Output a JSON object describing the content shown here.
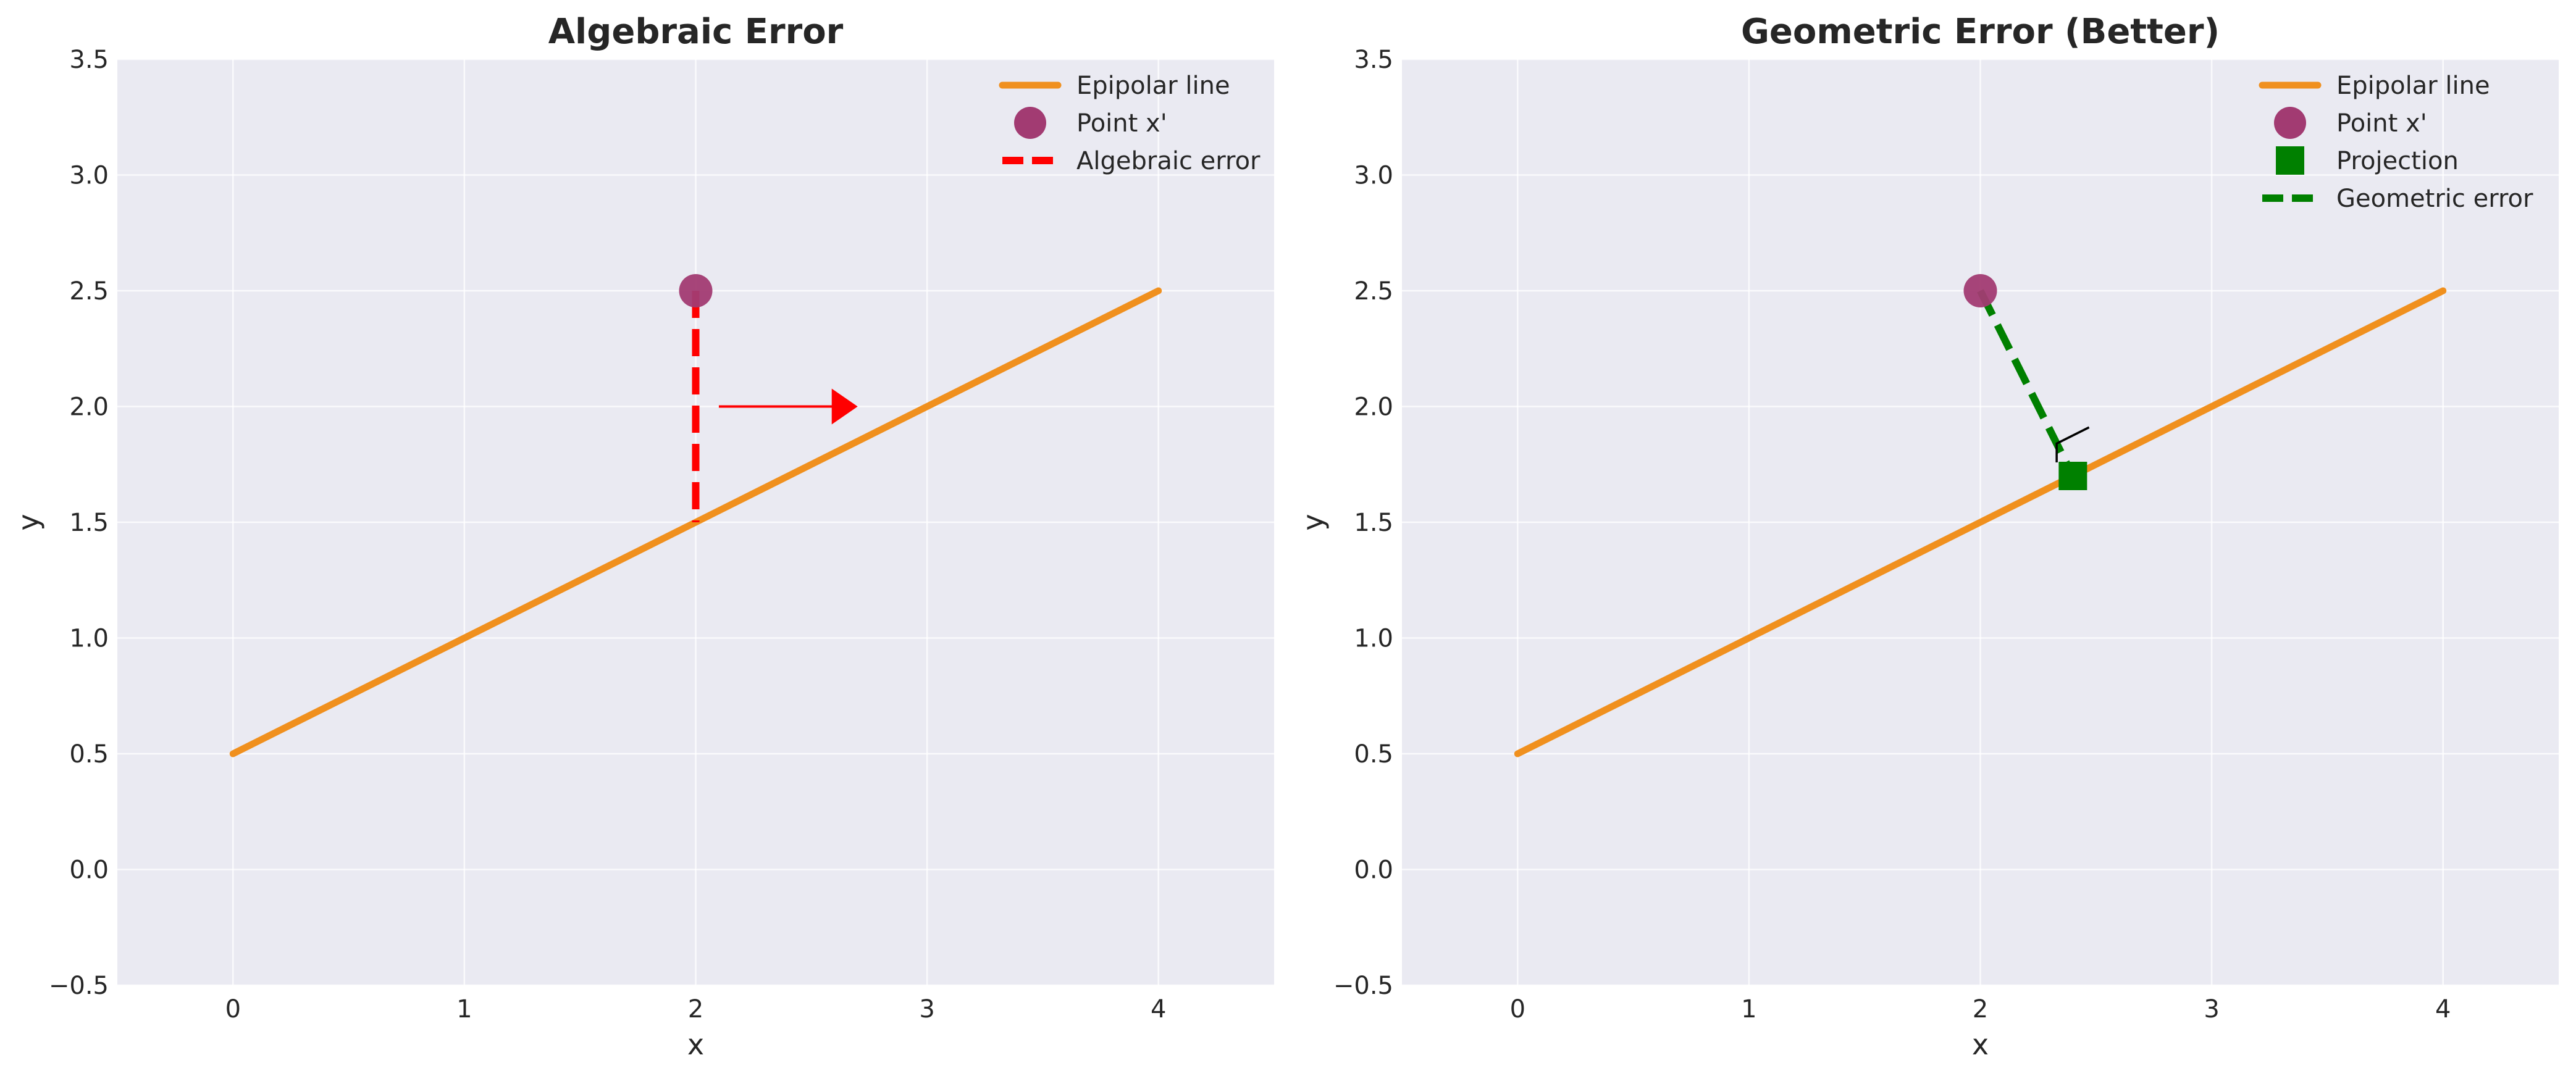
{
  "chart_data": [
    {
      "type": "line",
      "title": "Algebraic Error",
      "xlabel": "x",
      "ylabel": "y",
      "xlim": [
        -0.5,
        4.5
      ],
      "ylim": [
        -0.5,
        3.5
      ],
      "xticks": [
        0,
        1,
        2,
        3,
        4
      ],
      "yticks": [
        -0.5,
        0.0,
        0.5,
        1.0,
        1.5,
        2.0,
        2.5,
        3.0,
        3.5
      ],
      "grid": true,
      "legend_position": "top-right",
      "series": [
        {
          "name": "Epipolar line",
          "kind": "line",
          "color": "#f0901e",
          "x": [
            0,
            4
          ],
          "y": [
            0.5,
            2.5
          ]
        },
        {
          "name": "Point x'",
          "kind": "point",
          "color": "#a23b72",
          "x": [
            2
          ],
          "y": [
            2.5
          ]
        },
        {
          "name": "Algebraic error",
          "kind": "dashed",
          "color": "#ff0000",
          "x": [
            2,
            2
          ],
          "y": [
            2.5,
            1.5
          ]
        }
      ],
      "annotations": [
        {
          "type": "arrow",
          "color": "#ff0000",
          "from": [
            2.1,
            2.0
          ],
          "to": [
            2.7,
            2.0
          ]
        }
      ]
    },
    {
      "type": "line",
      "title": "Geometric Error (Better)",
      "xlabel": "x",
      "ylabel": "y",
      "xlim": [
        -0.5,
        4.5
      ],
      "ylim": [
        -0.5,
        3.5
      ],
      "xticks": [
        0,
        1,
        2,
        3,
        4
      ],
      "yticks": [
        -0.5,
        0.0,
        0.5,
        1.0,
        1.5,
        2.0,
        2.5,
        3.0,
        3.5
      ],
      "grid": true,
      "legend_position": "top-right",
      "series": [
        {
          "name": "Epipolar line",
          "kind": "line",
          "color": "#f0901e",
          "x": [
            0,
            4
          ],
          "y": [
            0.5,
            2.5
          ]
        },
        {
          "name": "Point x'",
          "kind": "point",
          "color": "#a23b72",
          "x": [
            2
          ],
          "y": [
            2.5
          ]
        },
        {
          "name": "Projection",
          "kind": "square",
          "color": "#008000",
          "x": [
            2.4
          ],
          "y": [
            1.7
          ]
        },
        {
          "name": "Geometric error",
          "kind": "dashed",
          "color": "#008000",
          "x": [
            2,
            2.4
          ],
          "y": [
            2.5,
            1.7
          ]
        }
      ],
      "annotations": [
        {
          "type": "right-angle",
          "color": "#000000",
          "points": [
            [
              2.33,
              1.84
            ],
            [
              2.47,
              1.91
            ]
          ]
        }
      ]
    }
  ]
}
